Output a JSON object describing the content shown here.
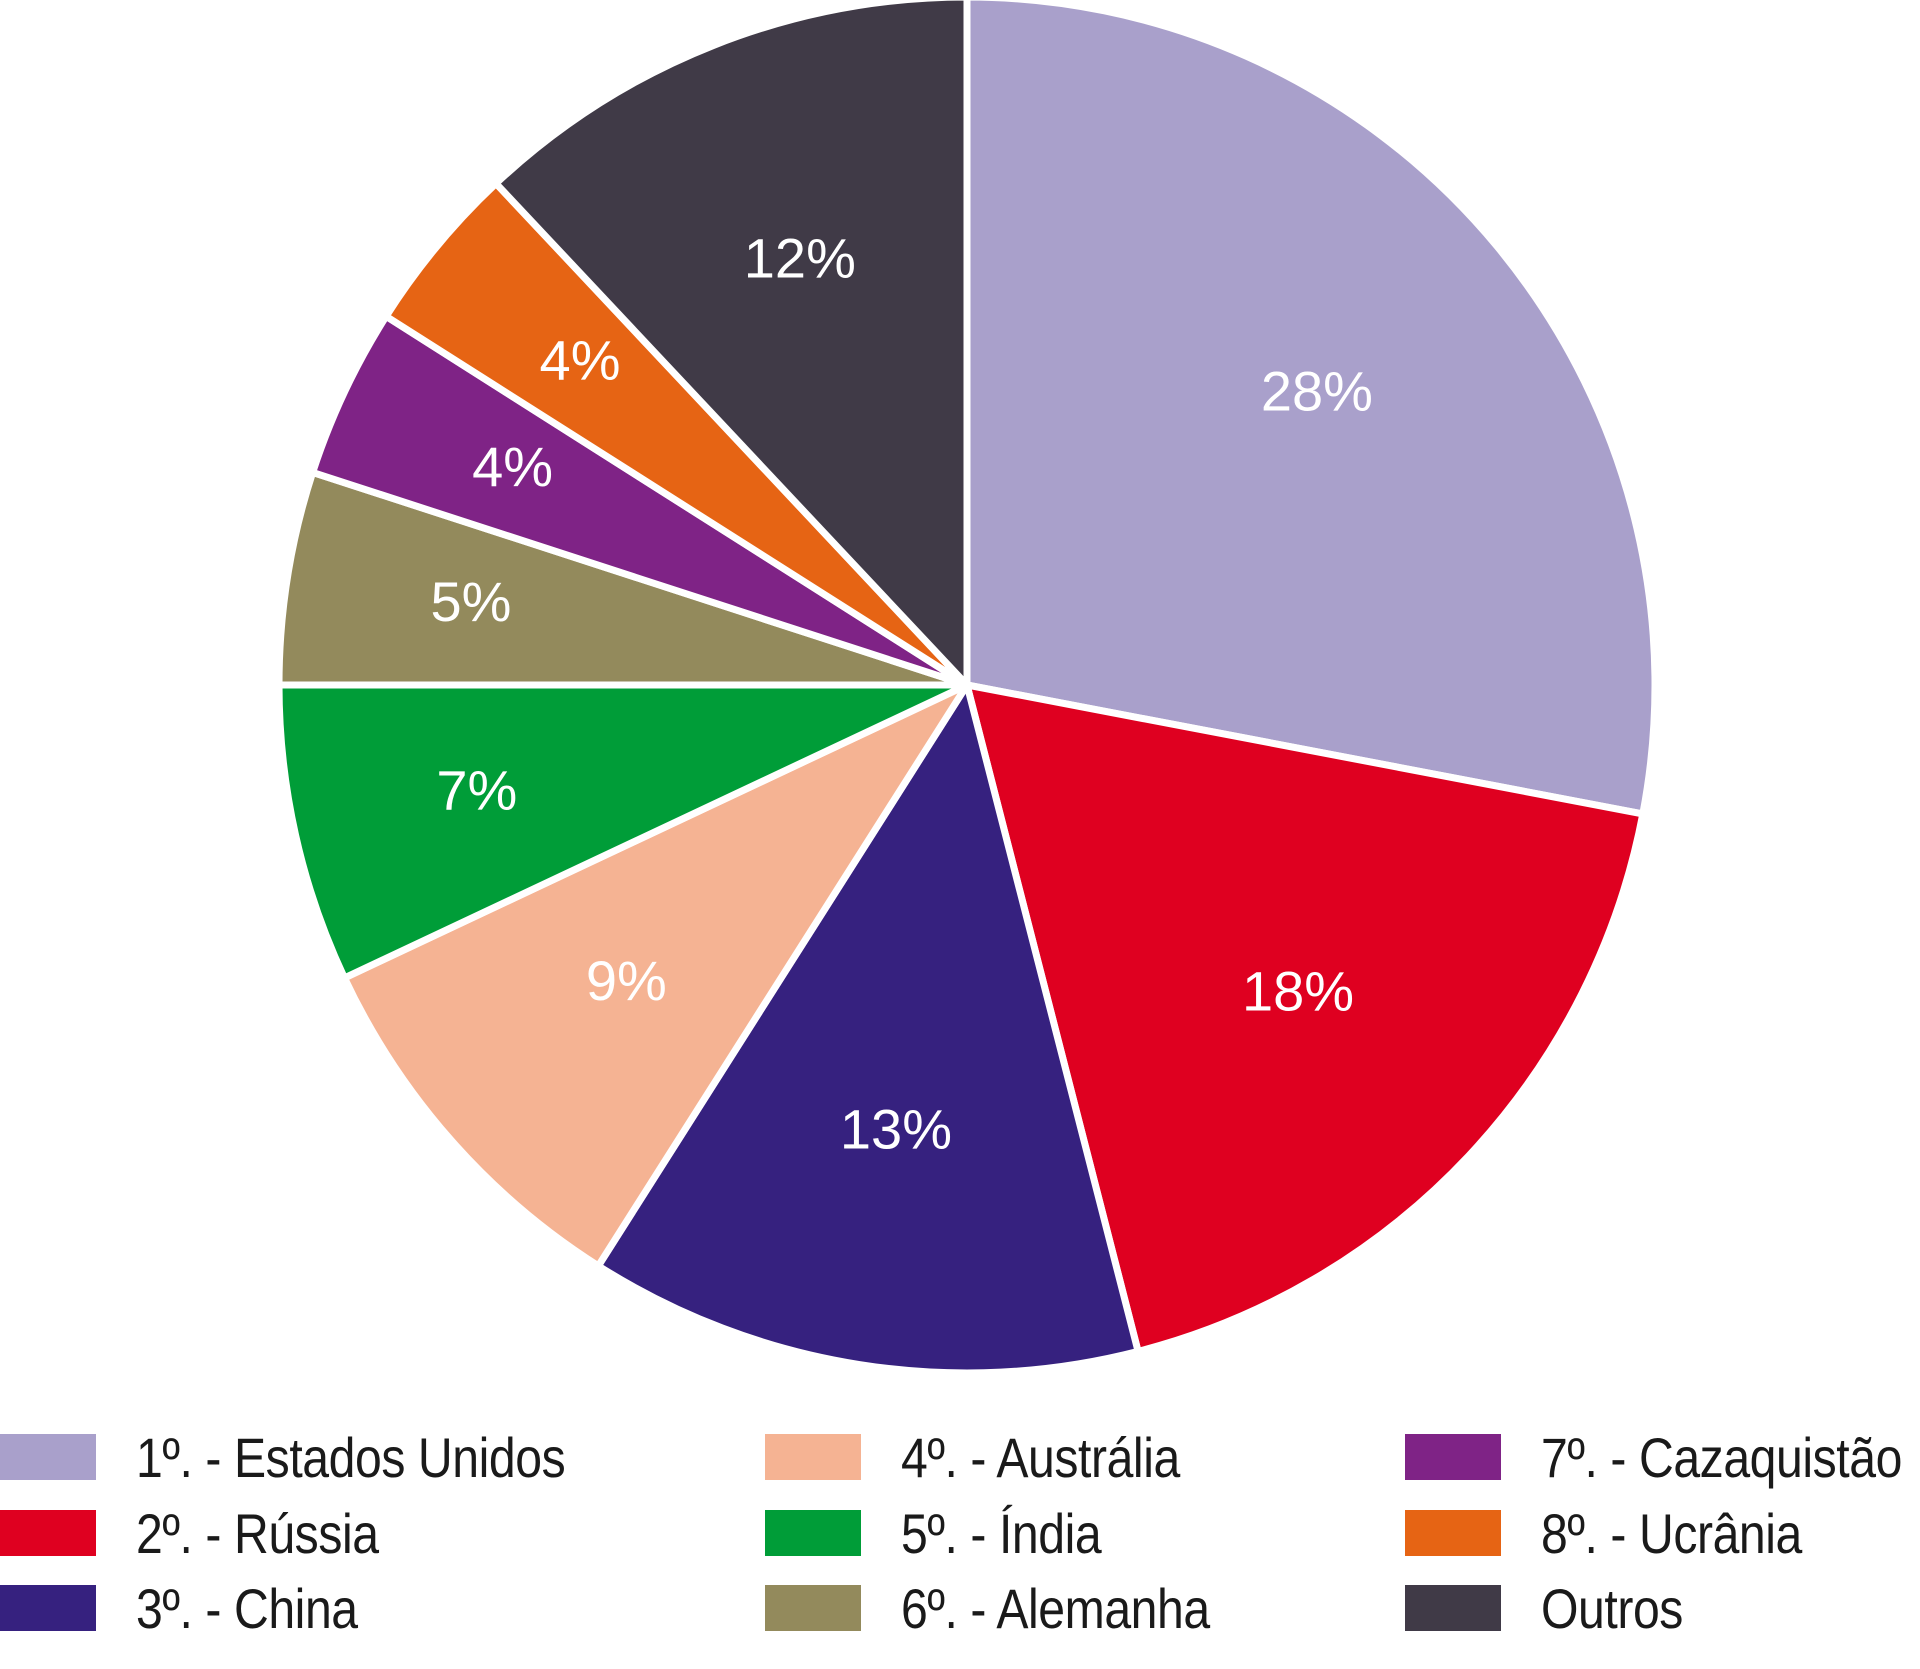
{
  "chart_data": {
    "type": "pie",
    "slices": [
      {
        "category": "1º. - Estados Unidos",
        "value": 28,
        "label": "28%",
        "color": "#a9a0cb"
      },
      {
        "category": "2º. - Rússia",
        "value": 18,
        "label": "18%",
        "color": "#df0020"
      },
      {
        "category": "3º. - China",
        "value": 13,
        "label": "13%",
        "color": "#36217f"
      },
      {
        "category": "4º. - Austrália",
        "value": 9,
        "label": "9%",
        "color": "#f5b393"
      },
      {
        "category": "5º. - Índia",
        "value": 7,
        "label": "7%",
        "color": "#009d38"
      },
      {
        "category": "6º. - Alemanha",
        "value": 5,
        "label": "5%",
        "color": "#938a5c"
      },
      {
        "category": "7º. - Cazaquistão",
        "value": 4,
        "label": "4%",
        "color": "#7f2386"
      },
      {
        "category": "8º. - Ucrânia",
        "value": 4,
        "label": "4%",
        "color": "#e66414"
      },
      {
        "category": "Outros",
        "value": 12,
        "label": "12%",
        "color": "#403a47"
      }
    ],
    "legend_placement": "bottom",
    "legend_columns": 3,
    "start_angle_deg": 0,
    "direction": "clockwise"
  }
}
